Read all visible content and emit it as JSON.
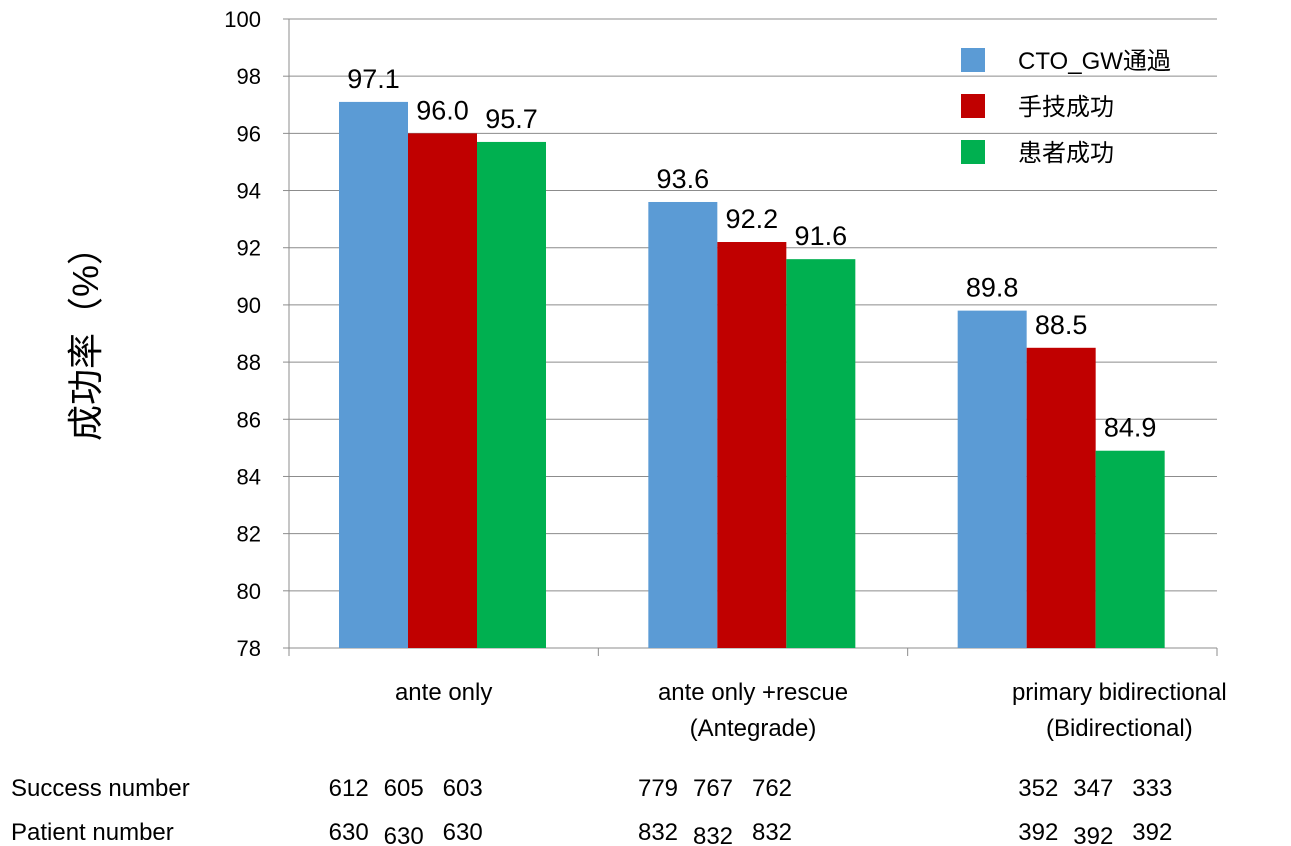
{
  "chart_data": {
    "type": "bar",
    "title": "",
    "xlabel": "",
    "ylabel": "成功率（%）",
    "ylim": [
      78,
      100
    ],
    "yticks": [
      78,
      80,
      82,
      84,
      86,
      88,
      90,
      92,
      94,
      96,
      98,
      100
    ],
    "grid": true,
    "legend_position": "top-right",
    "categories": [
      [
        "ante only"
      ],
      [
        "ante only +rescue",
        "(Antegrade)"
      ],
      [
        "primary bidirectional",
        "(Bidirectional)"
      ]
    ],
    "series": [
      {
        "name": "CTO_GW通過",
        "color": "#5b9bd5",
        "values": [
          97.1,
          93.6,
          89.8
        ],
        "labels": [
          "97.1",
          "93.6",
          "89.8"
        ]
      },
      {
        "name": "手技成功",
        "color": "#c00000",
        "values": [
          96.0,
          92.2,
          88.5
        ],
        "labels": [
          "96.0",
          "92.2",
          "88.5"
        ]
      },
      {
        "name": "患者成功",
        "color": "#00b050",
        "values": [
          95.7,
          91.6,
          84.9
        ],
        "labels": [
          "95.7",
          "91.6",
          "84.9"
        ]
      }
    ],
    "table_rows": [
      {
        "title": "Success number",
        "values": [
          [
            "612",
            "605",
            "603"
          ],
          [
            "779",
            "767",
            "762"
          ],
          [
            "352",
            "347",
            "333"
          ]
        ]
      },
      {
        "title": "Patient number",
        "values": [
          [
            "630",
            "630",
            "630"
          ],
          [
            "832",
            "832",
            "832"
          ],
          [
            "392",
            "392",
            "392"
          ]
        ]
      }
    ]
  }
}
